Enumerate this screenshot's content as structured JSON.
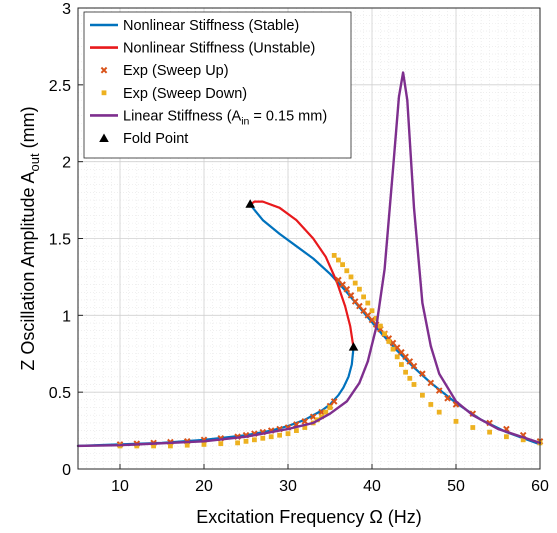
{
  "chart_data": {
    "type": "line",
    "title": "",
    "xlabel": "Excitation Frequency Ω (Hz)",
    "ylabel_main": "Z Oscillation Amplitude A",
    "ylabel_sub": "out",
    "ylabel_unit": " (mm)",
    "xlim": [
      5,
      60
    ],
    "ylim": [
      0,
      3
    ],
    "x_ticks": [
      10,
      20,
      30,
      40,
      50,
      60
    ],
    "y_ticks": [
      0,
      0.5,
      1,
      1.5,
      2,
      2.5,
      3
    ],
    "x_tick_labels": [
      "10",
      "20",
      "30",
      "40",
      "50",
      "60"
    ],
    "y_tick_labels": [
      "0",
      "0.5",
      "1",
      "1.5",
      "2",
      "2.5",
      "3"
    ],
    "grid": true,
    "minor_grid": true,
    "legend_position": "top-left",
    "colors": {
      "stable": "#0072BD",
      "unstable": "#E8191C",
      "sweep_up": "#D95319",
      "sweep_down": "#EDB120",
      "linear": "#7E2F8E",
      "fold": "#000000"
    },
    "legend": [
      {
        "key": "stable",
        "label": "Nonlinear Stiffness (Stable)"
      },
      {
        "key": "unstable",
        "label": "Nonlinear Stiffness (Unstable)"
      },
      {
        "key": "sweep_up",
        "label": "Exp (Sweep Up)"
      },
      {
        "key": "sweep_down",
        "label": "Exp (Sweep Down)"
      },
      {
        "key": "linear",
        "label_main": "Linear Stiffness (A",
        "label_sub": "in",
        "label_rest": " = 0.15 mm)"
      },
      {
        "key": "fold",
        "label": "Fold Point"
      }
    ],
    "series": [
      {
        "key": "stable_lower",
        "name": "Nonlinear Stiffness (Stable)",
        "x": [
          5,
          10,
          15,
          20,
          25,
          28,
          30,
          32,
          34,
          35,
          36,
          36.6,
          37.2,
          37.6,
          37.8
        ],
        "y": [
          0.15,
          0.16,
          0.17,
          0.19,
          0.22,
          0.25,
          0.28,
          0.32,
          0.38,
          0.42,
          0.48,
          0.53,
          0.6,
          0.68,
          0.79
        ]
      },
      {
        "key": "stable_upper",
        "name": "Nonlinear Stiffness (Stable)",
        "x": [
          25.5,
          27,
          29,
          31,
          33,
          35,
          37,
          39,
          41,
          43,
          45,
          47,
          50,
          53,
          56,
          60
        ],
        "y": [
          1.72,
          1.62,
          1.53,
          1.45,
          1.37,
          1.27,
          1.15,
          1.02,
          0.89,
          0.77,
          0.66,
          0.56,
          0.43,
          0.32,
          0.24,
          0.16
        ]
      },
      {
        "key": "unstable",
        "name": "Nonlinear Stiffness (Unstable)",
        "x": [
          25.5,
          26,
          27,
          29,
          31,
          33,
          34.5,
          35.8,
          36.8,
          37.4,
          37.8
        ],
        "y": [
          1.72,
          1.74,
          1.74,
          1.7,
          1.62,
          1.5,
          1.38,
          1.22,
          1.06,
          0.93,
          0.79
        ]
      },
      {
        "key": "linear",
        "name": "Linear Stiffness",
        "x": [
          5,
          10,
          20,
          25,
          30,
          33,
          35,
          37,
          38.5,
          39.5,
          40.5,
          41.5,
          42.5,
          43.2,
          43.7,
          44.2,
          45,
          46,
          47,
          48,
          50,
          52,
          55,
          60
        ],
        "y": [
          0.15,
          0.155,
          0.18,
          0.21,
          0.26,
          0.3,
          0.36,
          0.44,
          0.56,
          0.7,
          0.92,
          1.3,
          1.95,
          2.42,
          2.58,
          2.4,
          1.7,
          1.08,
          0.8,
          0.62,
          0.44,
          0.35,
          0.26,
          0.17
        ]
      },
      {
        "key": "sweep_up",
        "name": "Exp (Sweep Up)",
        "x": [
          10,
          12,
          14,
          16,
          18,
          20,
          22,
          24,
          25,
          26,
          27,
          28,
          29,
          30,
          31,
          32,
          33,
          34,
          35,
          35.5,
          36,
          36.5,
          37,
          37.5,
          38,
          38.5,
          39,
          39.5,
          40,
          40.5,
          41,
          41.5,
          42,
          42.5,
          43,
          43.5,
          44,
          44.5,
          45,
          46,
          47,
          48,
          49,
          50,
          52,
          54,
          56,
          58,
          60
        ],
        "y": [
          0.16,
          0.165,
          0.17,
          0.175,
          0.18,
          0.19,
          0.2,
          0.21,
          0.22,
          0.23,
          0.24,
          0.25,
          0.26,
          0.27,
          0.29,
          0.31,
          0.34,
          0.37,
          0.41,
          0.44,
          1.23,
          1.2,
          1.17,
          1.13,
          1.09,
          1.06,
          1.03,
          1.0,
          0.97,
          0.94,
          0.91,
          0.88,
          0.85,
          0.82,
          0.79,
          0.76,
          0.73,
          0.7,
          0.67,
          0.62,
          0.56,
          0.51,
          0.46,
          0.42,
          0.36,
          0.3,
          0.26,
          0.22,
          0.18
        ]
      },
      {
        "key": "sweep_down",
        "name": "Exp (Sweep Down)",
        "x": [
          60,
          58,
          56,
          54,
          52,
          50,
          48,
          47,
          46,
          45,
          44.5,
          44,
          43.5,
          43,
          42.5,
          42,
          41.5,
          41,
          40.5,
          40,
          39.5,
          39,
          38.5,
          38,
          37.5,
          37,
          36.5,
          36,
          35.5,
          35,
          34.5,
          34,
          33.5,
          33,
          32,
          31,
          30,
          29,
          28,
          27,
          26,
          25,
          24,
          22,
          20,
          18,
          16,
          14,
          12,
          10
        ],
        "y": [
          0.17,
          0.19,
          0.21,
          0.24,
          0.27,
          0.31,
          0.37,
          0.42,
          0.48,
          0.55,
          0.59,
          0.63,
          0.68,
          0.73,
          0.78,
          0.83,
          0.88,
          0.93,
          0.98,
          1.03,
          1.08,
          1.12,
          1.17,
          1.21,
          1.25,
          1.29,
          1.33,
          1.36,
          1.39,
          0.4,
          0.37,
          0.34,
          0.32,
          0.3,
          0.27,
          0.25,
          0.23,
          0.22,
          0.21,
          0.2,
          0.19,
          0.18,
          0.17,
          0.165,
          0.16,
          0.155,
          0.15,
          0.15,
          0.15,
          0.15
        ]
      },
      {
        "key": "fold",
        "name": "Fold Point",
        "x": [
          25.5,
          37.8
        ],
        "y": [
          1.72,
          0.79
        ]
      }
    ]
  }
}
